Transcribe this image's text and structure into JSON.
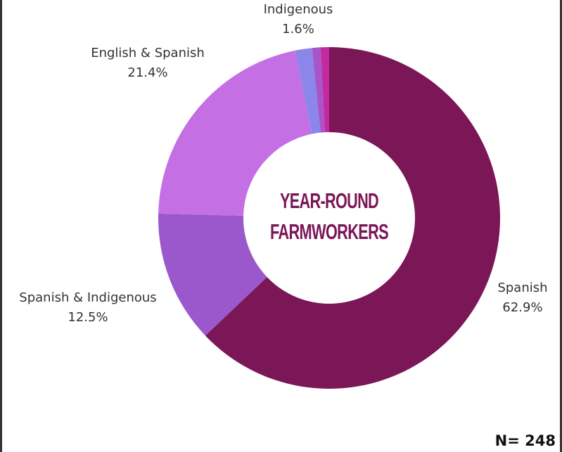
{
  "chart_data": {
    "type": "donut",
    "center_label": [
      "YEAR-ROUND",
      "FARMWORKERS"
    ],
    "categories": [
      "Spanish",
      "Spanish & Indigenous",
      "English & Spanish",
      "Indigenous",
      null,
      null
    ],
    "values": [
      62.9,
      12.5,
      21.4,
      1.6,
      0.8,
      0.8
    ],
    "value_labels": [
      "62.9%",
      "12.5%",
      "21.4%",
      "1.6%",
      null,
      null
    ],
    "colors": [
      "#7b1657",
      "#9a58cc",
      "#c46fe4",
      "#8a86ea",
      "#a954c8",
      "#c42a9f"
    ],
    "note": "N= 248"
  }
}
